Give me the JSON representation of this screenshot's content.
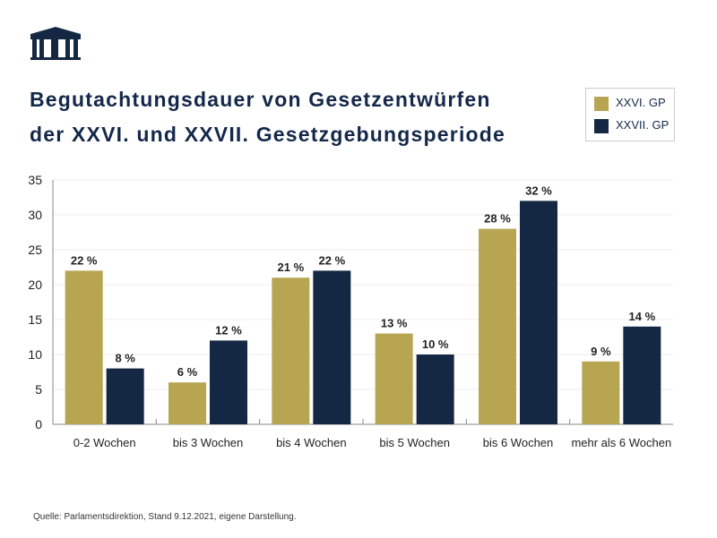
{
  "logo_alt": "Parlament logo",
  "title_line1": "Begutachtungsdauer von Gesetzentwürfen",
  "title_line2": "der XXVI. und XXVII. Gesetzgebungsperiode",
  "source": "Quelle: Parlamentsdirektion, Stand 9.12.2021, eigene Darstellung.",
  "colors": {
    "gold": "#b8a552",
    "navy": "#152843"
  },
  "chart_data": {
    "type": "bar",
    "categories": [
      "0-2 Wochen",
      "bis 3 Wochen",
      "bis 4 Wochen",
      "bis 5 Wochen",
      "bis 6 Wochen",
      "mehr als 6 Wochen"
    ],
    "series": [
      {
        "name": "XXVI. GP",
        "values": [
          22,
          6,
          21,
          13,
          28,
          9
        ],
        "labels": [
          "22 %",
          "6 %",
          "21 %",
          "13 %",
          "28 %",
          "9 %"
        ],
        "color": "#b8a552"
      },
      {
        "name": "XXVII. GP",
        "values": [
          8,
          12,
          22,
          10,
          32,
          14
        ],
        "labels": [
          "8 %",
          "12 %",
          "22 %",
          "10 %",
          "32 %",
          "14 %"
        ],
        "color": "#152843"
      }
    ],
    "yticks": [
      "0",
      "5",
      "10",
      "15",
      "20",
      "25",
      "30",
      "35"
    ],
    "ylim": [
      0,
      35
    ],
    "grid": true,
    "legend": "top-right"
  }
}
